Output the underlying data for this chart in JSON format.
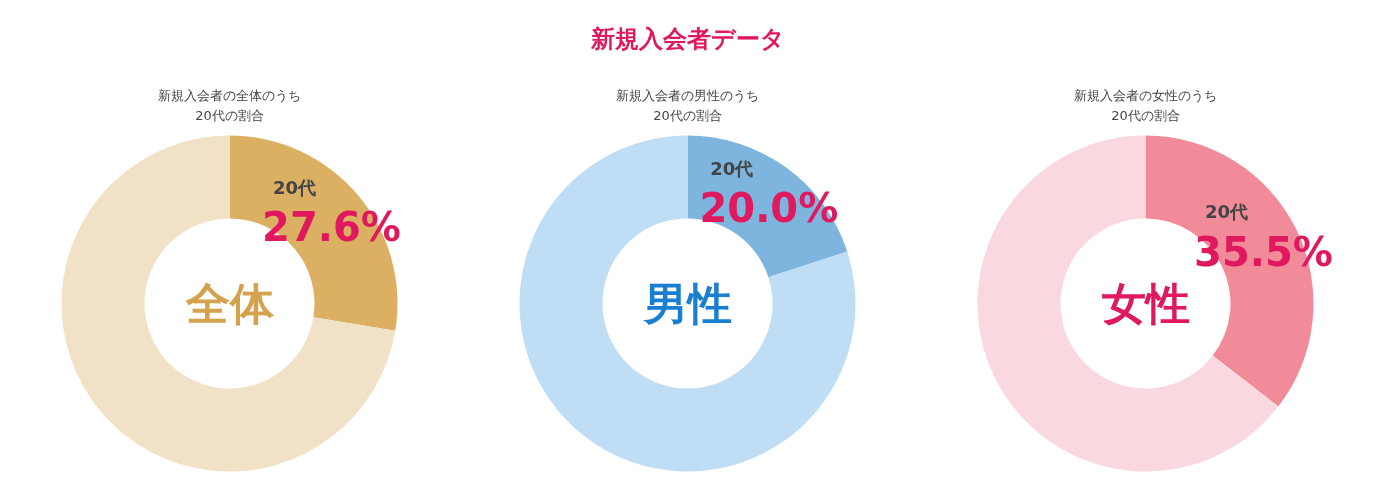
{
  "chart_data": [
    {
      "type": "donut",
      "subtitle": "新規入会者の全体のうち\n20代の割合",
      "categories": [
        "20代",
        null
      ],
      "values": [
        27.6,
        72.4
      ],
      "colors": [
        "#dbb063",
        "#f1e1c6"
      ],
      "value_labels": [
        "27.6%",
        null
      ],
      "annotations": [
        "全体"
      ]
    },
    {
      "type": "donut",
      "title": "新規入会者データ",
      "subtitle": "新規入会者の男性のうち\n20代の割合",
      "categories": [
        "20代",
        null
      ],
      "values": [
        20.0,
        80.0
      ],
      "colors": [
        "#7db5de",
        "#bfdef6"
      ],
      "value_labels": [
        "20.0%",
        null
      ],
      "annotations": [
        "男性"
      ]
    },
    {
      "type": "donut",
      "subtitle": "新規入会者の女性のうち\n20代の割合",
      "categories": [
        "20代",
        null
      ],
      "values": [
        35.5,
        64.5
      ],
      "colors": [
        "#f28b99",
        "#f9d9df"
      ],
      "value_labels": [
        "35.5%",
        null
      ],
      "annotations": [
        "女性"
      ]
    }
  ]
}
